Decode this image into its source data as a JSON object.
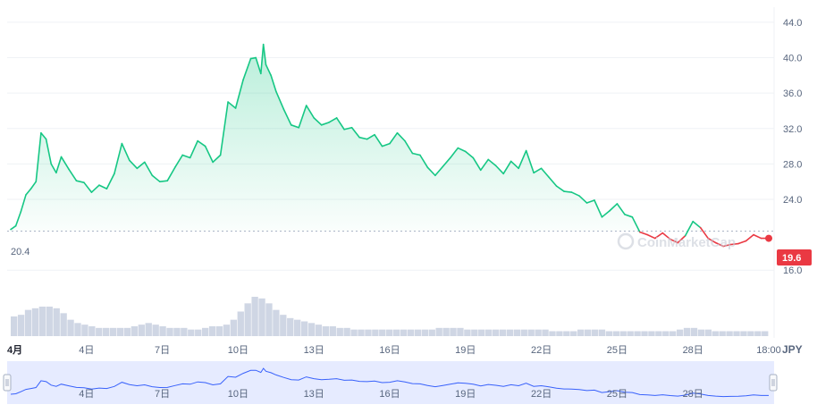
{
  "watermark": "CoinMarketCap",
  "currency_unit": "JPY",
  "start_price_label": "20.4",
  "current_price_label": "19.6",
  "colors": {
    "up_line": "#16c784",
    "down_line": "#ea3943",
    "badge": "#ea3943",
    "grid": "#eff2f5",
    "volume": "#cfd6e4",
    "navigator_line": "#3861fb",
    "navigator_fill": "#e6ebff"
  },
  "chart_data": {
    "type": "line",
    "title": "",
    "xlabel": "",
    "ylabel": "",
    "ylim": [
      13.6,
      44.8
    ],
    "y_ticks": [
      "44.0",
      "40.0",
      "36.0",
      "32.0",
      "28.0",
      "24.0",
      "16.0"
    ],
    "x_tick_labels": [
      "4月",
      "4日",
      "7日",
      "10日",
      "13日",
      "16日",
      "19日",
      "22日",
      "25日",
      "28日",
      "18:00"
    ],
    "navigator_tick_labels": [
      "4日",
      "7日",
      "10日",
      "13日",
      "16日",
      "19日",
      "22日",
      "25日",
      "28日"
    ],
    "baseline": 20.4,
    "series": [
      {
        "x_day": [
          1.0,
          1.2,
          1.4,
          1.6,
          1.8,
          2.0,
          2.2,
          2.4,
          2.6,
          2.8,
          3.0,
          3.3,
          3.6,
          3.9,
          4.2,
          4.5,
          4.8,
          5.1,
          5.4,
          5.7,
          6.0,
          6.3,
          6.6,
          6.9,
          7.2,
          7.5,
          7.8,
          8.1,
          8.4,
          8.7,
          9.0,
          9.3,
          9.6,
          9.9,
          10.2,
          10.5,
          10.7,
          10.9,
          11.0,
          11.1,
          11.3,
          11.5,
          11.8,
          12.1,
          12.4,
          12.7,
          13.0,
          13.3,
          13.6,
          13.9,
          14.2,
          14.5,
          14.8,
          15.1,
          15.4,
          15.7,
          16.0,
          16.3,
          16.6,
          16.9,
          17.2,
          17.5,
          17.8,
          18.1,
          18.4,
          18.7,
          19.0,
          19.3,
          19.6,
          19.9,
          20.2,
          20.5,
          20.8,
          21.1,
          21.4,
          21.7,
          22.0,
          22.3,
          22.6,
          22.9,
          23.2,
          23.5,
          23.8,
          24.1,
          24.4,
          24.7,
          25.0,
          25.3,
          25.6,
          25.9,
          26.2,
          26.5,
          26.8,
          27.1,
          27.4,
          27.7,
          28.0,
          28.3,
          28.6,
          28.9,
          29.2,
          29.5,
          29.8,
          30.1,
          30.4,
          30.7,
          31.0
        ],
        "values": [
          20.6,
          21.0,
          22.6,
          24.5,
          25.2,
          26.0,
          31.5,
          30.8,
          28.0,
          27.0,
          28.8,
          27.4,
          26.1,
          25.9,
          24.8,
          25.6,
          25.2,
          26.9,
          30.3,
          28.4,
          27.5,
          28.2,
          26.7,
          26.0,
          26.1,
          27.6,
          29.0,
          28.7,
          30.6,
          30.0,
          28.2,
          29.0,
          35.0,
          34.3,
          37.5,
          39.9,
          40.0,
          38.2,
          41.5,
          39.2,
          38.0,
          36.2,
          34.2,
          32.4,
          32.1,
          34.6,
          33.2,
          32.4,
          32.7,
          33.2,
          31.9,
          32.1,
          31.0,
          30.8,
          31.3,
          30.0,
          30.3,
          31.5,
          30.6,
          29.2,
          29.0,
          27.6,
          26.7,
          27.7,
          28.7,
          29.8,
          29.4,
          28.7,
          27.3,
          28.5,
          27.8,
          26.9,
          28.3,
          27.5,
          29.5,
          27.0,
          27.5,
          26.5,
          25.5,
          24.9,
          24.8,
          24.4,
          23.6,
          23.9,
          22.0,
          22.7,
          23.5,
          22.3,
          22.0,
          20.3,
          20.0,
          19.6,
          20.2,
          19.5,
          19.1,
          19.9,
          21.5,
          20.8,
          19.6,
          19.1,
          18.7,
          18.9,
          19.0,
          19.3,
          20.0,
          19.6,
          19.6
        ]
      }
    ],
    "volume": [
      12,
      13,
      16,
      17,
      18,
      18,
      17,
      14,
      10,
      8,
      7,
      6,
      5,
      5,
      5,
      5,
      5,
      6,
      7,
      8,
      7,
      6,
      5,
      5,
      5,
      4,
      4,
      5,
      6,
      6,
      7,
      10,
      15,
      20,
      24,
      23,
      20,
      16,
      13,
      11,
      10,
      9,
      8,
      7,
      6,
      6,
      5,
      5,
      4,
      4,
      4,
      4,
      4,
      4,
      4,
      4,
      4,
      4,
      4,
      4,
      5,
      5,
      5,
      5,
      4,
      4,
      4,
      4,
      4,
      4,
      4,
      4,
      4,
      4,
      4,
      4,
      3,
      3,
      3,
      3,
      4,
      4,
      4,
      4,
      3,
      3,
      3,
      3,
      3,
      3,
      3,
      3,
      3,
      3,
      4,
      5,
      5,
      4,
      4,
      3,
      3,
      3,
      3,
      3,
      3,
      3,
      3
    ]
  }
}
